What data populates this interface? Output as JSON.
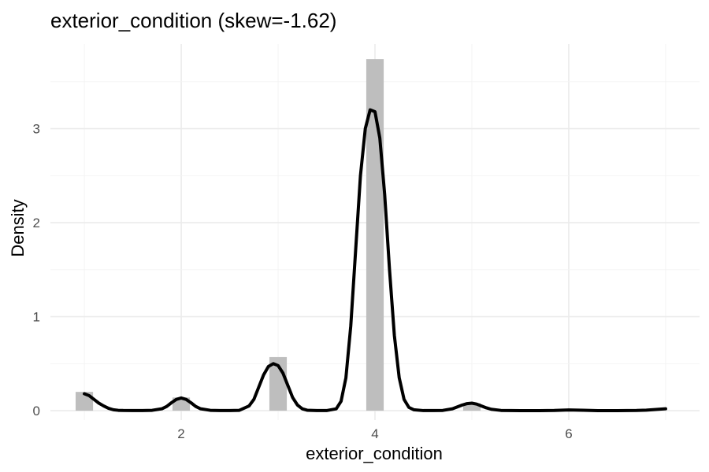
{
  "chart_data": {
    "type": "histogram",
    "title": "exterior_condition (skew=-1.62)",
    "xlabel": "exterior_condition",
    "ylabel": "Density",
    "xlim": [
      0.65,
      7.35
    ],
    "ylim": [
      -0.1,
      3.9
    ],
    "x_ticks": [
      2,
      4,
      6
    ],
    "y_ticks": [
      0,
      1,
      2,
      3
    ],
    "grid": true,
    "legend": "none",
    "bar_color": "#bebebe",
    "line_color": "#000000",
    "histogram": {
      "bin_width": 0.18,
      "bins": [
        {
          "x": 1,
          "density": 0.2
        },
        {
          "x": 2,
          "density": 0.14
        },
        {
          "x": 3,
          "density": 0.57
        },
        {
          "x": 4,
          "density": 3.74
        },
        {
          "x": 5,
          "density": 0.08
        }
      ]
    },
    "density_curve": {
      "x": [
        1.0,
        1.05,
        1.1,
        1.15,
        1.2,
        1.25,
        1.3,
        1.35,
        1.4,
        1.5,
        1.6,
        1.7,
        1.8,
        1.85,
        1.9,
        1.95,
        2.0,
        2.05,
        2.1,
        2.15,
        2.2,
        2.3,
        2.4,
        2.5,
        2.6,
        2.7,
        2.75,
        2.8,
        2.85,
        2.9,
        2.95,
        3.0,
        3.05,
        3.1,
        3.15,
        3.2,
        3.25,
        3.3,
        3.4,
        3.5,
        3.6,
        3.65,
        3.7,
        3.75,
        3.8,
        3.85,
        3.9,
        3.95,
        4.0,
        4.05,
        4.1,
        4.15,
        4.2,
        4.25,
        4.3,
        4.35,
        4.4,
        4.5,
        4.6,
        4.7,
        4.8,
        4.85,
        4.9,
        4.95,
        5.0,
        5.05,
        5.1,
        5.15,
        5.2,
        5.3,
        5.5,
        5.7,
        5.85,
        6.0,
        6.15,
        6.3,
        6.5,
        6.7,
        6.8,
        6.9,
        7.0
      ],
      "y": [
        0.18,
        0.16,
        0.12,
        0.08,
        0.05,
        0.025,
        0.01,
        0.004,
        0.002,
        0.001,
        0.001,
        0.004,
        0.02,
        0.045,
        0.085,
        0.12,
        0.135,
        0.12,
        0.085,
        0.045,
        0.02,
        0.004,
        0.001,
        0.001,
        0.004,
        0.05,
        0.12,
        0.25,
        0.38,
        0.47,
        0.5,
        0.48,
        0.4,
        0.27,
        0.14,
        0.06,
        0.02,
        0.005,
        0.001,
        0.001,
        0.02,
        0.1,
        0.35,
        0.9,
        1.7,
        2.5,
        3.0,
        3.2,
        3.18,
        2.9,
        2.3,
        1.5,
        0.8,
        0.35,
        0.12,
        0.035,
        0.01,
        0.001,
        0.001,
        0.003,
        0.02,
        0.04,
        0.06,
        0.075,
        0.08,
        0.07,
        0.05,
        0.03,
        0.015,
        0.003,
        0.0,
        0.0,
        0.002,
        0.008,
        0.005,
        0.0,
        0.0,
        0.002,
        0.006,
        0.013,
        0.02
      ]
    }
  }
}
